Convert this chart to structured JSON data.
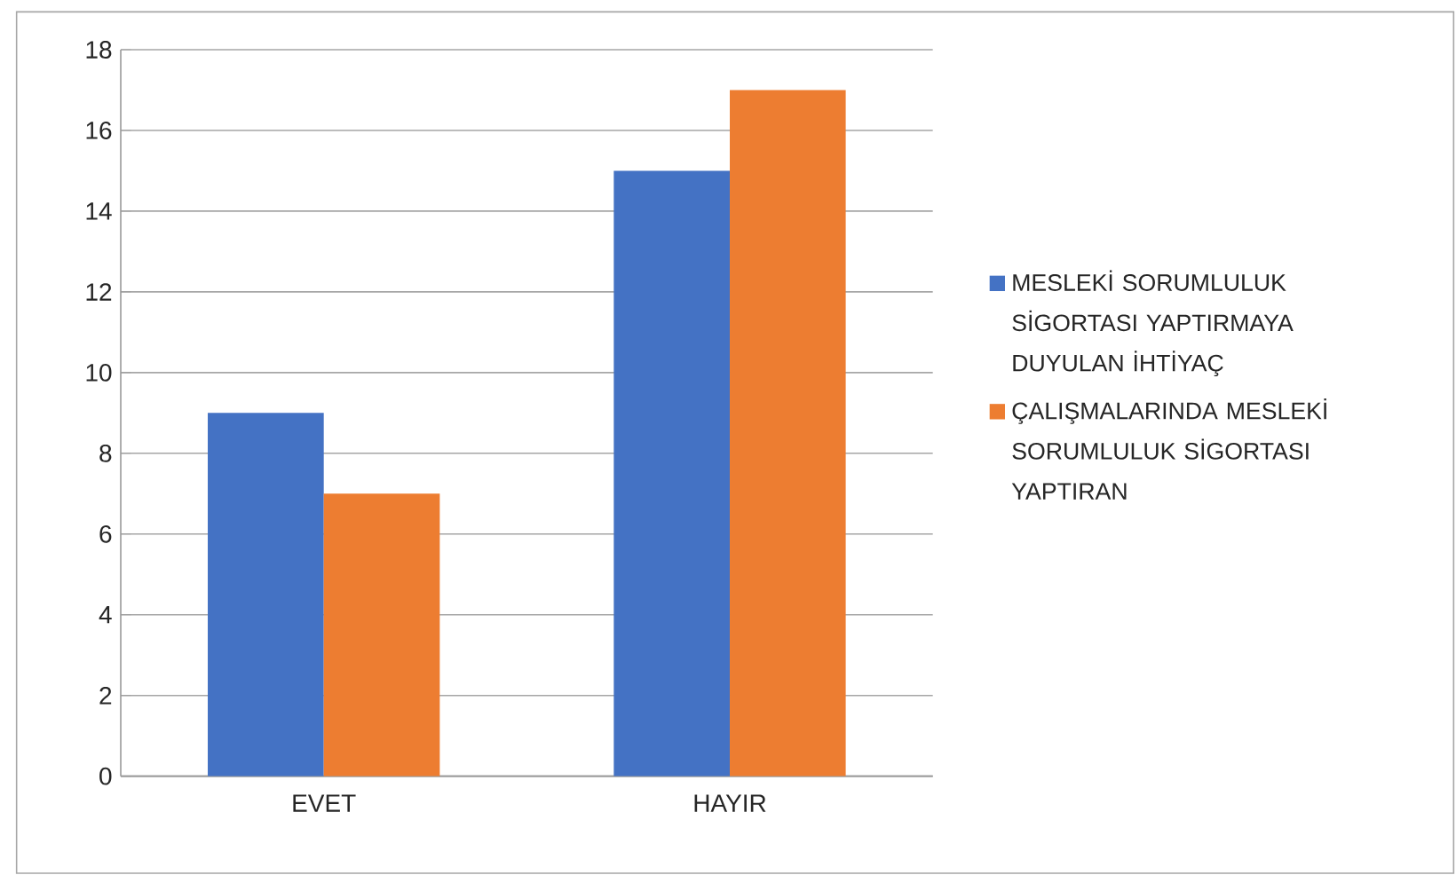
{
  "chart_data": {
    "type": "bar",
    "categories": [
      "EVET",
      "HAYIR"
    ],
    "series": [
      {
        "name": "MESLEKİ SORUMLULUK SİGORTASI YAPTIRMAYA DUYULAN İHTİYAÇ",
        "color": "#4472c4",
        "values": [
          9,
          15
        ]
      },
      {
        "name": "ÇALIŞMALARINDA MESLEKİ SORUMLULUK SİGORTASI YAPTIRAN",
        "color": "#ed7d31",
        "values": [
          7,
          17
        ]
      }
    ],
    "ylim": [
      0,
      18
    ],
    "yticks": [
      0,
      2,
      4,
      6,
      8,
      10,
      12,
      14,
      16,
      18
    ],
    "grid": "y",
    "legend": "right"
  }
}
